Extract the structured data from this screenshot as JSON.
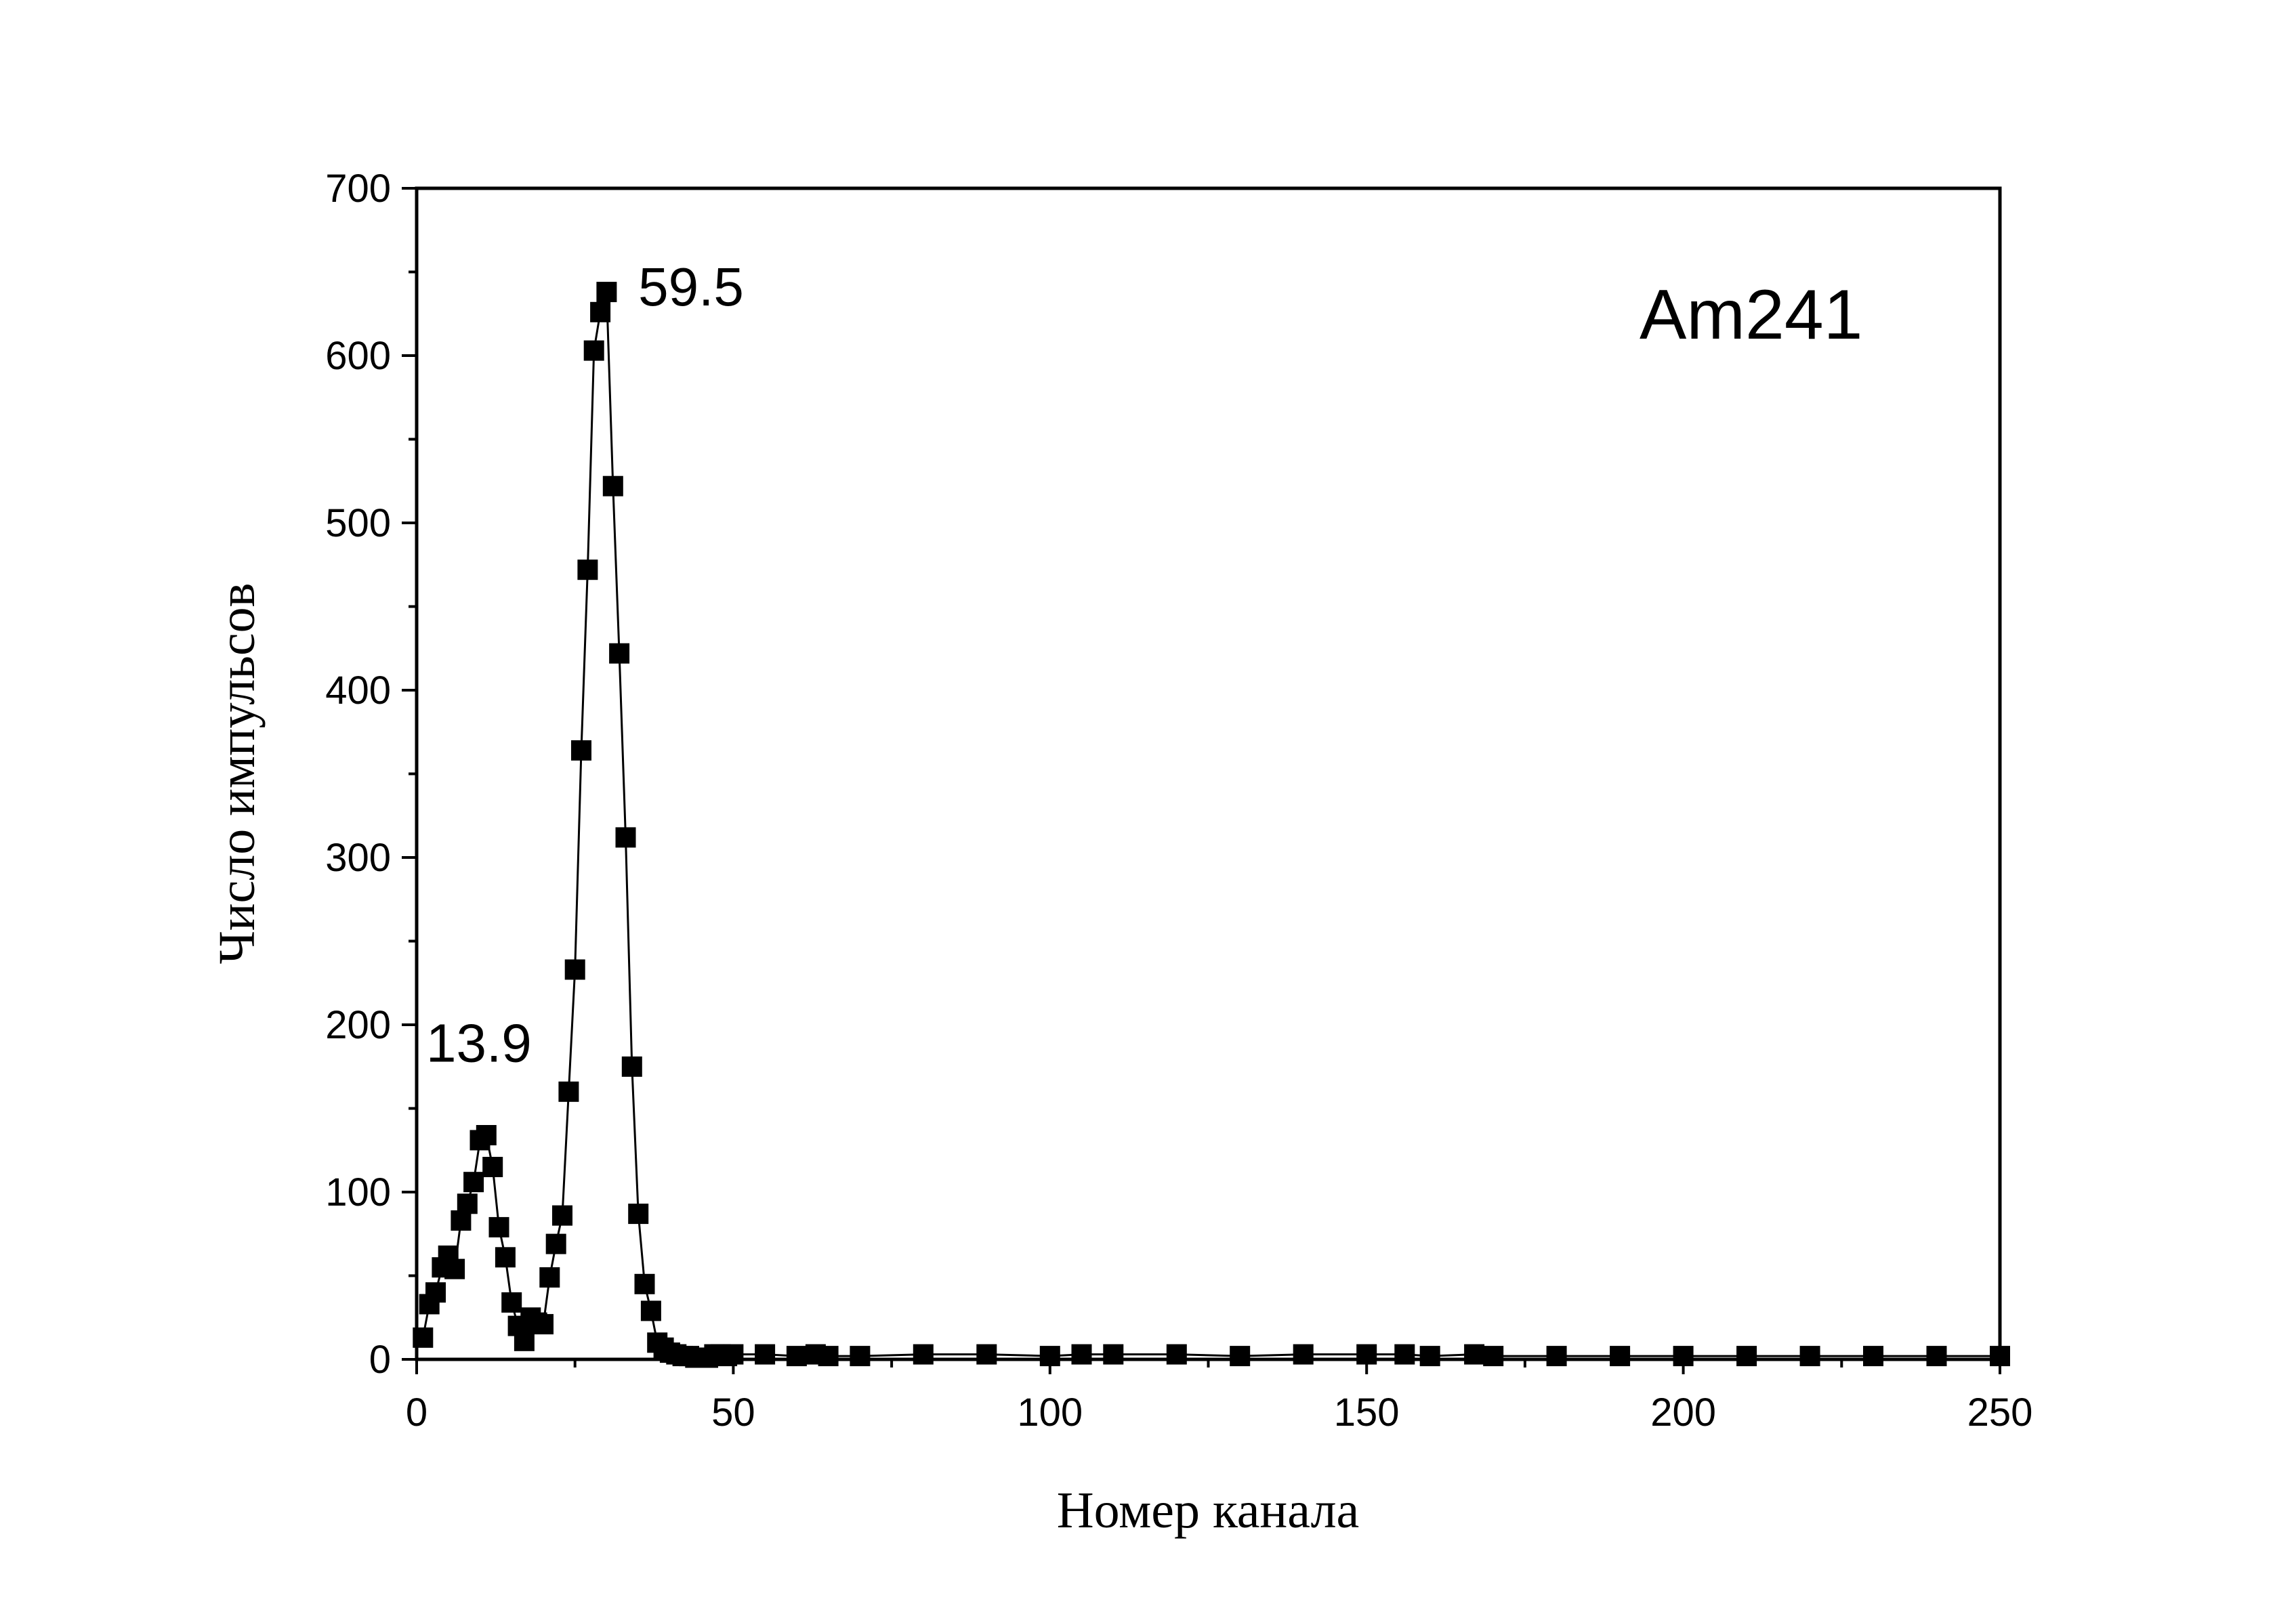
{
  "chart_data": {
    "type": "scatter",
    "title": "",
    "xlabel": "Номер канала",
    "ylabel": "Число импульсов",
    "xlim": [
      0,
      250
    ],
    "ylim": [
      0,
      700
    ],
    "x_ticks": [
      0,
      50,
      100,
      150,
      200,
      250
    ],
    "y_ticks": [
      0,
      100,
      200,
      300,
      400,
      500,
      600,
      700
    ],
    "x_tick_labels": [
      "0",
      "50",
      "100",
      "150",
      "200",
      "250"
    ],
    "y_tick_labels": [
      "0",
      "100",
      "200",
      "300",
      "400",
      "500",
      "600",
      "700"
    ],
    "grid": false,
    "line_connected": true,
    "marker": "square",
    "series_color": "#000000",
    "inset_label": "Am241",
    "annotations": [
      {
        "text": "59.5",
        "x": 35,
        "y": 630
      },
      {
        "text": "13.9",
        "x": 1.5,
        "y": 178
      }
    ],
    "series": [
      {
        "x": [
          1,
          2,
          3,
          4,
          5,
          6,
          7,
          8,
          9,
          10,
          11,
          12,
          13,
          14,
          15,
          16,
          17,
          18,
          19,
          20,
          21,
          22,
          23,
          24,
          25,
          26,
          27,
          28,
          29,
          30,
          31,
          32,
          33,
          34,
          35,
          36,
          37,
          38,
          39,
          40,
          41,
          42,
          43,
          44,
          45,
          46,
          47,
          48,
          49,
          50,
          55,
          60,
          63,
          65,
          70,
          80,
          90,
          100,
          105,
          110,
          120,
          130,
          140,
          150,
          156,
          160,
          167,
          170,
          180,
          190,
          200,
          210,
          220,
          230,
          240,
          250
        ],
        "y": [
          13,
          33,
          40,
          55,
          62,
          54,
          83,
          93,
          106,
          131,
          134,
          115,
          79,
          61,
          34,
          20,
          11,
          25,
          22,
          21,
          49,
          69,
          86,
          160,
          233,
          364,
          472,
          603,
          626,
          638,
          522,
          422,
          312,
          175,
          87,
          45,
          29,
          10,
          7,
          4,
          3,
          2,
          2,
          1,
          1,
          1,
          3,
          3,
          2,
          3,
          3,
          2,
          3,
          2,
          2,
          3,
          3,
          2,
          3,
          3,
          3,
          2,
          3,
          3,
          3,
          2,
          3,
          2,
          2,
          2,
          2,
          2,
          2,
          2,
          2,
          2
        ]
      }
    ]
  }
}
